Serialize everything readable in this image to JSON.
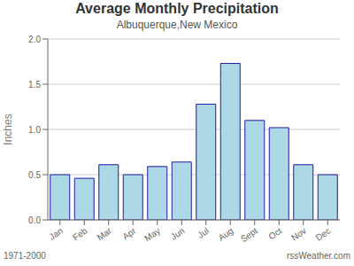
{
  "chart_data": {
    "type": "bar",
    "title": "Average Monthly Precipitation",
    "subtitle": "Albuquerque,New Mexico",
    "ylabel": "Inches",
    "categories": [
      "Jan",
      "Feb",
      "Mar",
      "Apr",
      "May",
      "Jun",
      "Jul",
      "Aug",
      "Sept",
      "Oct",
      "Nov",
      "Dec"
    ],
    "values": [
      0.5,
      0.46,
      0.61,
      0.5,
      0.59,
      0.64,
      1.28,
      1.73,
      1.1,
      1.02,
      0.61,
      0.5
    ],
    "color": "#ADD8E6",
    "ylim": [
      0,
      2.0
    ],
    "yticks": [
      {
        "value": 0,
        "label": "0.0"
      },
      0.5,
      {
        "value": 1.0,
        "label": "1.0"
      },
      1.5,
      {
        "value": 2.0,
        "label": "2.0"
      }
    ],
    "grid": true,
    "annotations": [
      "1971-2000",
      "rssWeather.com"
    ]
  }
}
